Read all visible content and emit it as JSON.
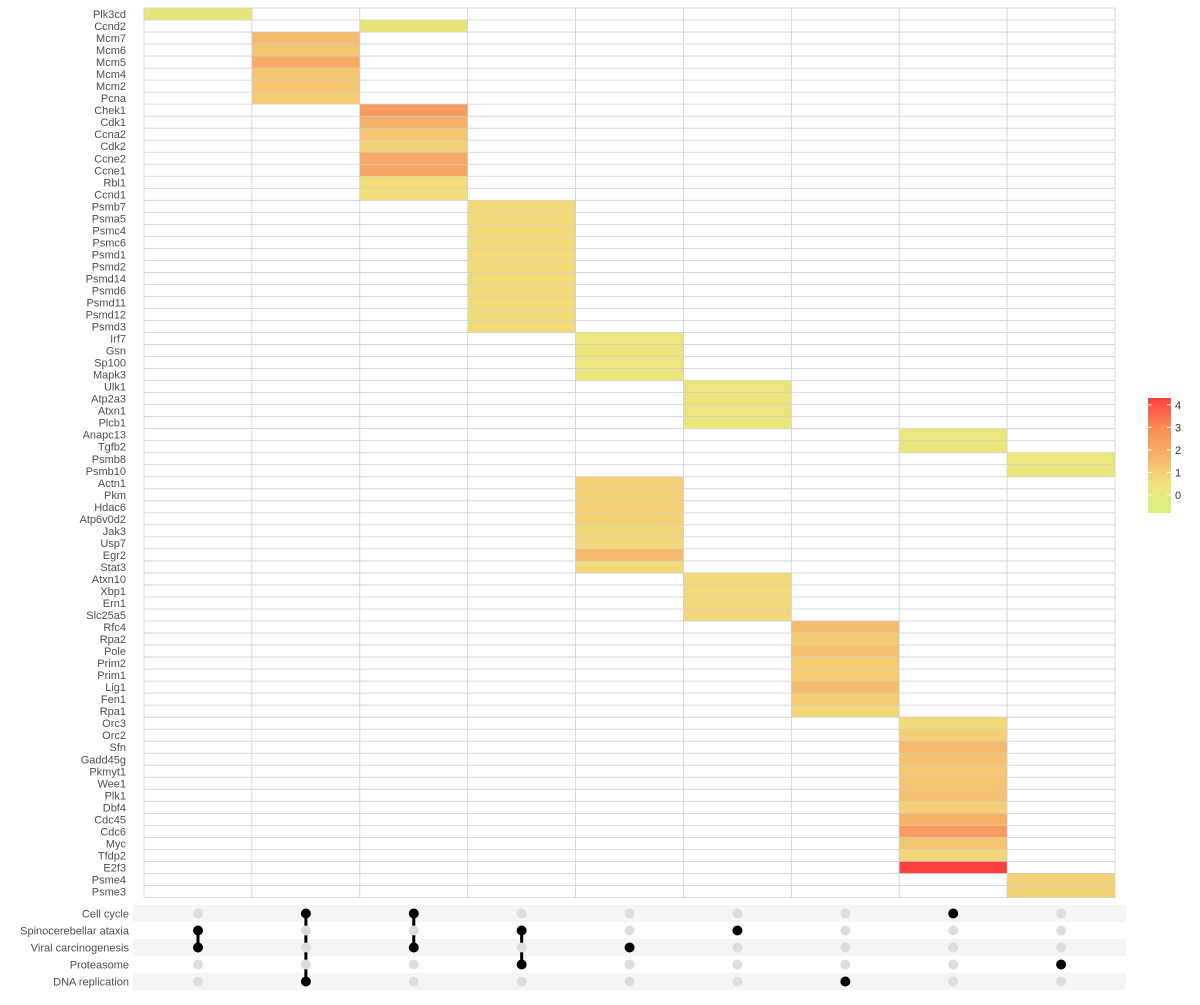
{
  "chart_data": {
    "type": "heatmap",
    "title": "",
    "xlabel": "",
    "ylabel": "",
    "genes": [
      "Plk3cd",
      "Ccnd2",
      "Mcm7",
      "Mcm6",
      "Mcm5",
      "Mcm4",
      "Mcm2",
      "Pcna",
      "Chek1",
      "Cdk1",
      "Ccna2",
      "Cdk2",
      "Ccne2",
      "Ccne1",
      "Rbl1",
      "Ccnd1",
      "Psmb7",
      "Psma5",
      "Psmc4",
      "Psmc6",
      "Psmd1",
      "Psmd2",
      "Psmd14",
      "Psmd6",
      "Psmd11",
      "Psmd12",
      "Psmd3",
      "Irf7",
      "Gsn",
      "Sp100",
      "Mapk3",
      "Ulk1",
      "Atp2a3",
      "Atxn1",
      "Plcb1",
      "Anapc13",
      "Tgfb2",
      "Psmb8",
      "Psmb10",
      "Actn1",
      "Pkm",
      "Hdac6",
      "Atp6v0d2",
      "Jak3",
      "Usp7",
      "Egr2",
      "Stat3",
      "Atxn10",
      "Xbp1",
      "Ern1",
      "Slc25a5",
      "Rfc4",
      "Rpa2",
      "Pole",
      "Prim2",
      "Prim1",
      "Lig1",
      "Fen1",
      "Rpa1",
      "Orc3",
      "Orc2",
      "Sfn",
      "Gadd45g",
      "Pkmyt1",
      "Wee1",
      "Plk1",
      "Dbf4",
      "Cdc45",
      "Cdc6",
      "Myc",
      "Tfdp2",
      "E2f3",
      "Psme4",
      "Psme3"
    ],
    "cells": [
      {
        "gene": "Plk3cd",
        "col": 1,
        "value": 0.0
      },
      {
        "gene": "Ccnd2",
        "col": 3,
        "value": 0.1
      },
      {
        "gene": "Mcm7",
        "col": 2,
        "value": 1.5
      },
      {
        "gene": "Mcm6",
        "col": 2,
        "value": 1.3
      },
      {
        "gene": "Mcm5",
        "col": 2,
        "value": 2.0
      },
      {
        "gene": "Mcm4",
        "col": 2,
        "value": 1.3
      },
      {
        "gene": "Mcm2",
        "col": 2,
        "value": 1.3
      },
      {
        "gene": "Pcna",
        "col": 2,
        "value": 1.1
      },
      {
        "gene": "Chek1",
        "col": 3,
        "value": 2.5
      },
      {
        "gene": "Cdk1",
        "col": 3,
        "value": 1.8
      },
      {
        "gene": "Ccna2",
        "col": 3,
        "value": 1.3
      },
      {
        "gene": "Cdk2",
        "col": 3,
        "value": 0.9
      },
      {
        "gene": "Ccne2",
        "col": 3,
        "value": 2.1
      },
      {
        "gene": "Ccne1",
        "col": 3,
        "value": 2.1
      },
      {
        "gene": "Rbl1",
        "col": 3,
        "value": 0.6
      },
      {
        "gene": "Ccnd1",
        "col": 3,
        "value": 0.5
      },
      {
        "gene": "Psmb7",
        "col": 4,
        "value": 0.7
      },
      {
        "gene": "Psma5",
        "col": 4,
        "value": 0.7
      },
      {
        "gene": "Psmc4",
        "col": 4,
        "value": 0.7
      },
      {
        "gene": "Psmc6",
        "col": 4,
        "value": 0.7
      },
      {
        "gene": "Psmd1",
        "col": 4,
        "value": 0.7
      },
      {
        "gene": "Psmd2",
        "col": 4,
        "value": 0.7
      },
      {
        "gene": "Psmd14",
        "col": 4,
        "value": 0.7
      },
      {
        "gene": "Psmd6",
        "col": 4,
        "value": 0.7
      },
      {
        "gene": "Psmd11",
        "col": 4,
        "value": 0.7
      },
      {
        "gene": "Psmd12",
        "col": 4,
        "value": 0.7
      },
      {
        "gene": "Psmd3",
        "col": 4,
        "value": 0.7
      },
      {
        "gene": "Irf7",
        "col": 5,
        "value": 0.2
      },
      {
        "gene": "Gsn",
        "col": 5,
        "value": 0.2
      },
      {
        "gene": "Sp100",
        "col": 5,
        "value": 0.2
      },
      {
        "gene": "Mapk3",
        "col": 5,
        "value": 0.2
      },
      {
        "gene": "Ulk1",
        "col": 6,
        "value": 0.2
      },
      {
        "gene": "Atp2a3",
        "col": 6,
        "value": 0.2
      },
      {
        "gene": "Atxn1",
        "col": 6,
        "value": 0.2
      },
      {
        "gene": "Plcb1",
        "col": 6,
        "value": 0.2
      },
      {
        "gene": "Anapc13",
        "col": 8,
        "value": 0.1
      },
      {
        "gene": "Tgfb2",
        "col": 8,
        "value": 0.1
      },
      {
        "gene": "Psmb8",
        "col": 9,
        "value": 0.1
      },
      {
        "gene": "Psmb10",
        "col": 9,
        "value": 0.1
      },
      {
        "gene": "Actn1",
        "col": 5,
        "value": 1.0
      },
      {
        "gene": "Pkm",
        "col": 5,
        "value": 1.0
      },
      {
        "gene": "Hdac6",
        "col": 5,
        "value": 1.0
      },
      {
        "gene": "Atp6v0d2",
        "col": 5,
        "value": 0.9
      },
      {
        "gene": "Jak3",
        "col": 5,
        "value": 0.8
      },
      {
        "gene": "Usp7",
        "col": 5,
        "value": 0.8
      },
      {
        "gene": "Egr2",
        "col": 5,
        "value": 1.6
      },
      {
        "gene": "Stat3",
        "col": 5,
        "value": 0.7
      },
      {
        "gene": "Atxn10",
        "col": 6,
        "value": 0.7
      },
      {
        "gene": "Xbp1",
        "col": 6,
        "value": 0.7
      },
      {
        "gene": "Ern1",
        "col": 6,
        "value": 0.7
      },
      {
        "gene": "Slc25a5",
        "col": 6,
        "value": 0.8
      },
      {
        "gene": "Rfc4",
        "col": 7,
        "value": 1.5
      },
      {
        "gene": "Rpa2",
        "col": 7,
        "value": 1.1
      },
      {
        "gene": "Pole",
        "col": 7,
        "value": 1.4
      },
      {
        "gene": "Prim2",
        "col": 7,
        "value": 1.1
      },
      {
        "gene": "Prim1",
        "col": 7,
        "value": 1.1
      },
      {
        "gene": "Lig1",
        "col": 7,
        "value": 1.5
      },
      {
        "gene": "Fen1",
        "col": 7,
        "value": 1.1
      },
      {
        "gene": "Rpa1",
        "col": 7,
        "value": 0.8
      },
      {
        "gene": "Orc3",
        "col": 8,
        "value": 0.7
      },
      {
        "gene": "Orc2",
        "col": 8,
        "value": 1.0
      },
      {
        "gene": "Sfn",
        "col": 8,
        "value": 1.6
      },
      {
        "gene": "Gadd45g",
        "col": 8,
        "value": 1.4
      },
      {
        "gene": "Pkmyt1",
        "col": 8,
        "value": 1.2
      },
      {
        "gene": "Wee1",
        "col": 8,
        "value": 1.3
      },
      {
        "gene": "Plk1",
        "col": 8,
        "value": 1.4
      },
      {
        "gene": "Dbf4",
        "col": 8,
        "value": 1.0
      },
      {
        "gene": "Cdc45",
        "col": 8,
        "value": 1.8
      },
      {
        "gene": "Cdc6",
        "col": 8,
        "value": 2.5
      },
      {
        "gene": "Myc",
        "col": 8,
        "value": 1.3
      },
      {
        "gene": "Tfdp2",
        "col": 8,
        "value": 0.8
      },
      {
        "gene": "E2f3",
        "col": 8,
        "value": 4.3
      },
      {
        "gene": "Psme4",
        "col": 9,
        "value": 0.9
      },
      {
        "gene": "Psme3",
        "col": 9,
        "value": 0.9
      }
    ],
    "legend": {
      "min": -0.8,
      "max": 4.3,
      "ticks": [
        0,
        1,
        2,
        3,
        4
      ],
      "tick_labels": [
        "0",
        "1",
        "2",
        "3",
        "4"
      ],
      "placement": "right",
      "colors": [
        "#d6f07e",
        "#f2e27b",
        "#f6b36a",
        "#fa8a56",
        "#ff4040"
      ]
    },
    "matrix": {
      "pathways": [
        "Cell cycle",
        "Spinocerebellar ataxia",
        "Viral carcinogenesis",
        "Proteasome",
        "DNA replication"
      ],
      "columns": [
        [
          1,
          2
        ],
        [
          0,
          4
        ],
        [
          0,
          2
        ],
        [
          1,
          3
        ],
        [
          2
        ],
        [
          1
        ],
        [
          4
        ],
        [
          0
        ],
        [
          3
        ]
      ],
      "active_color": "#000000",
      "inactive_color": "#dddddd",
      "stripe_color": "#f5f5f5"
    },
    "grid": true
  }
}
